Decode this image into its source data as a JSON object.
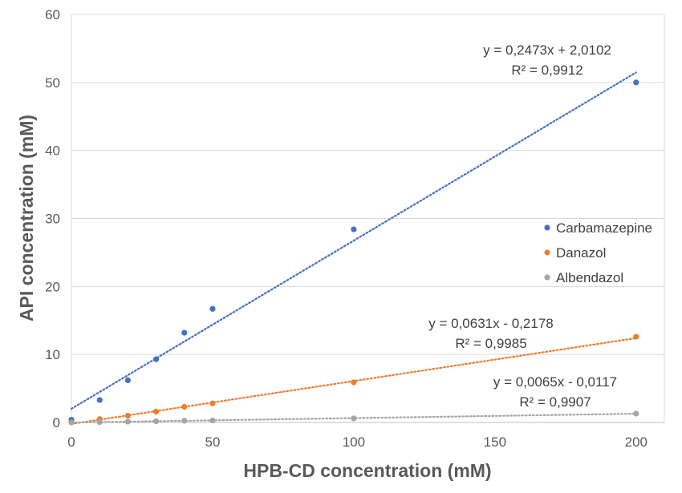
{
  "chart_data": {
    "type": "scatter",
    "xlabel": "HPB-CD concentration (mM)",
    "ylabel": "API concentration (mM)",
    "xlim": [
      0,
      210
    ],
    "ylim": [
      0,
      60
    ],
    "x_ticks": [
      0,
      50,
      100,
      150,
      200
    ],
    "y_ticks": [
      0,
      10,
      20,
      30,
      40,
      50,
      60
    ],
    "grid": "horizontal",
    "legend_position": "right",
    "series": [
      {
        "name": "Carbamazepine",
        "color": "#4472C4",
        "points": [
          [
            0,
            0.4
          ],
          [
            10,
            3.3
          ],
          [
            20,
            6.2
          ],
          [
            30,
            9.3
          ],
          [
            40,
            13.2
          ],
          [
            50,
            16.7
          ],
          [
            100,
            28.4
          ],
          [
            200,
            50.0
          ]
        ],
        "trendline": {
          "slope": 0.2473,
          "intercept": 2.0102
        },
        "equation": "y = 0,2473x + 2,0102",
        "r2": "R² = 0,9912"
      },
      {
        "name": "Danazol",
        "color": "#ED7D31",
        "points": [
          [
            0,
            0.0
          ],
          [
            10,
            0.5
          ],
          [
            20,
            1.0
          ],
          [
            30,
            1.6
          ],
          [
            40,
            2.3
          ],
          [
            50,
            2.8
          ],
          [
            100,
            5.9
          ],
          [
            200,
            12.6
          ]
        ],
        "trendline": {
          "slope": 0.0631,
          "intercept": -0.2178
        },
        "equation": "y = 0,0631x - 0,2178",
        "r2": "R² = 0,9985"
      },
      {
        "name": "Albendazol",
        "color": "#A5A5A5",
        "points": [
          [
            0,
            0.0
          ],
          [
            10,
            0.05
          ],
          [
            20,
            0.12
          ],
          [
            30,
            0.18
          ],
          [
            40,
            0.25
          ],
          [
            50,
            0.3
          ],
          [
            100,
            0.6
          ],
          [
            200,
            1.3
          ]
        ],
        "trendline": {
          "slope": 0.0065,
          "intercept": -0.0117
        },
        "equation": "y = 0,0065x - 0,0117",
        "r2": "R² = 0,9907"
      }
    ]
  }
}
